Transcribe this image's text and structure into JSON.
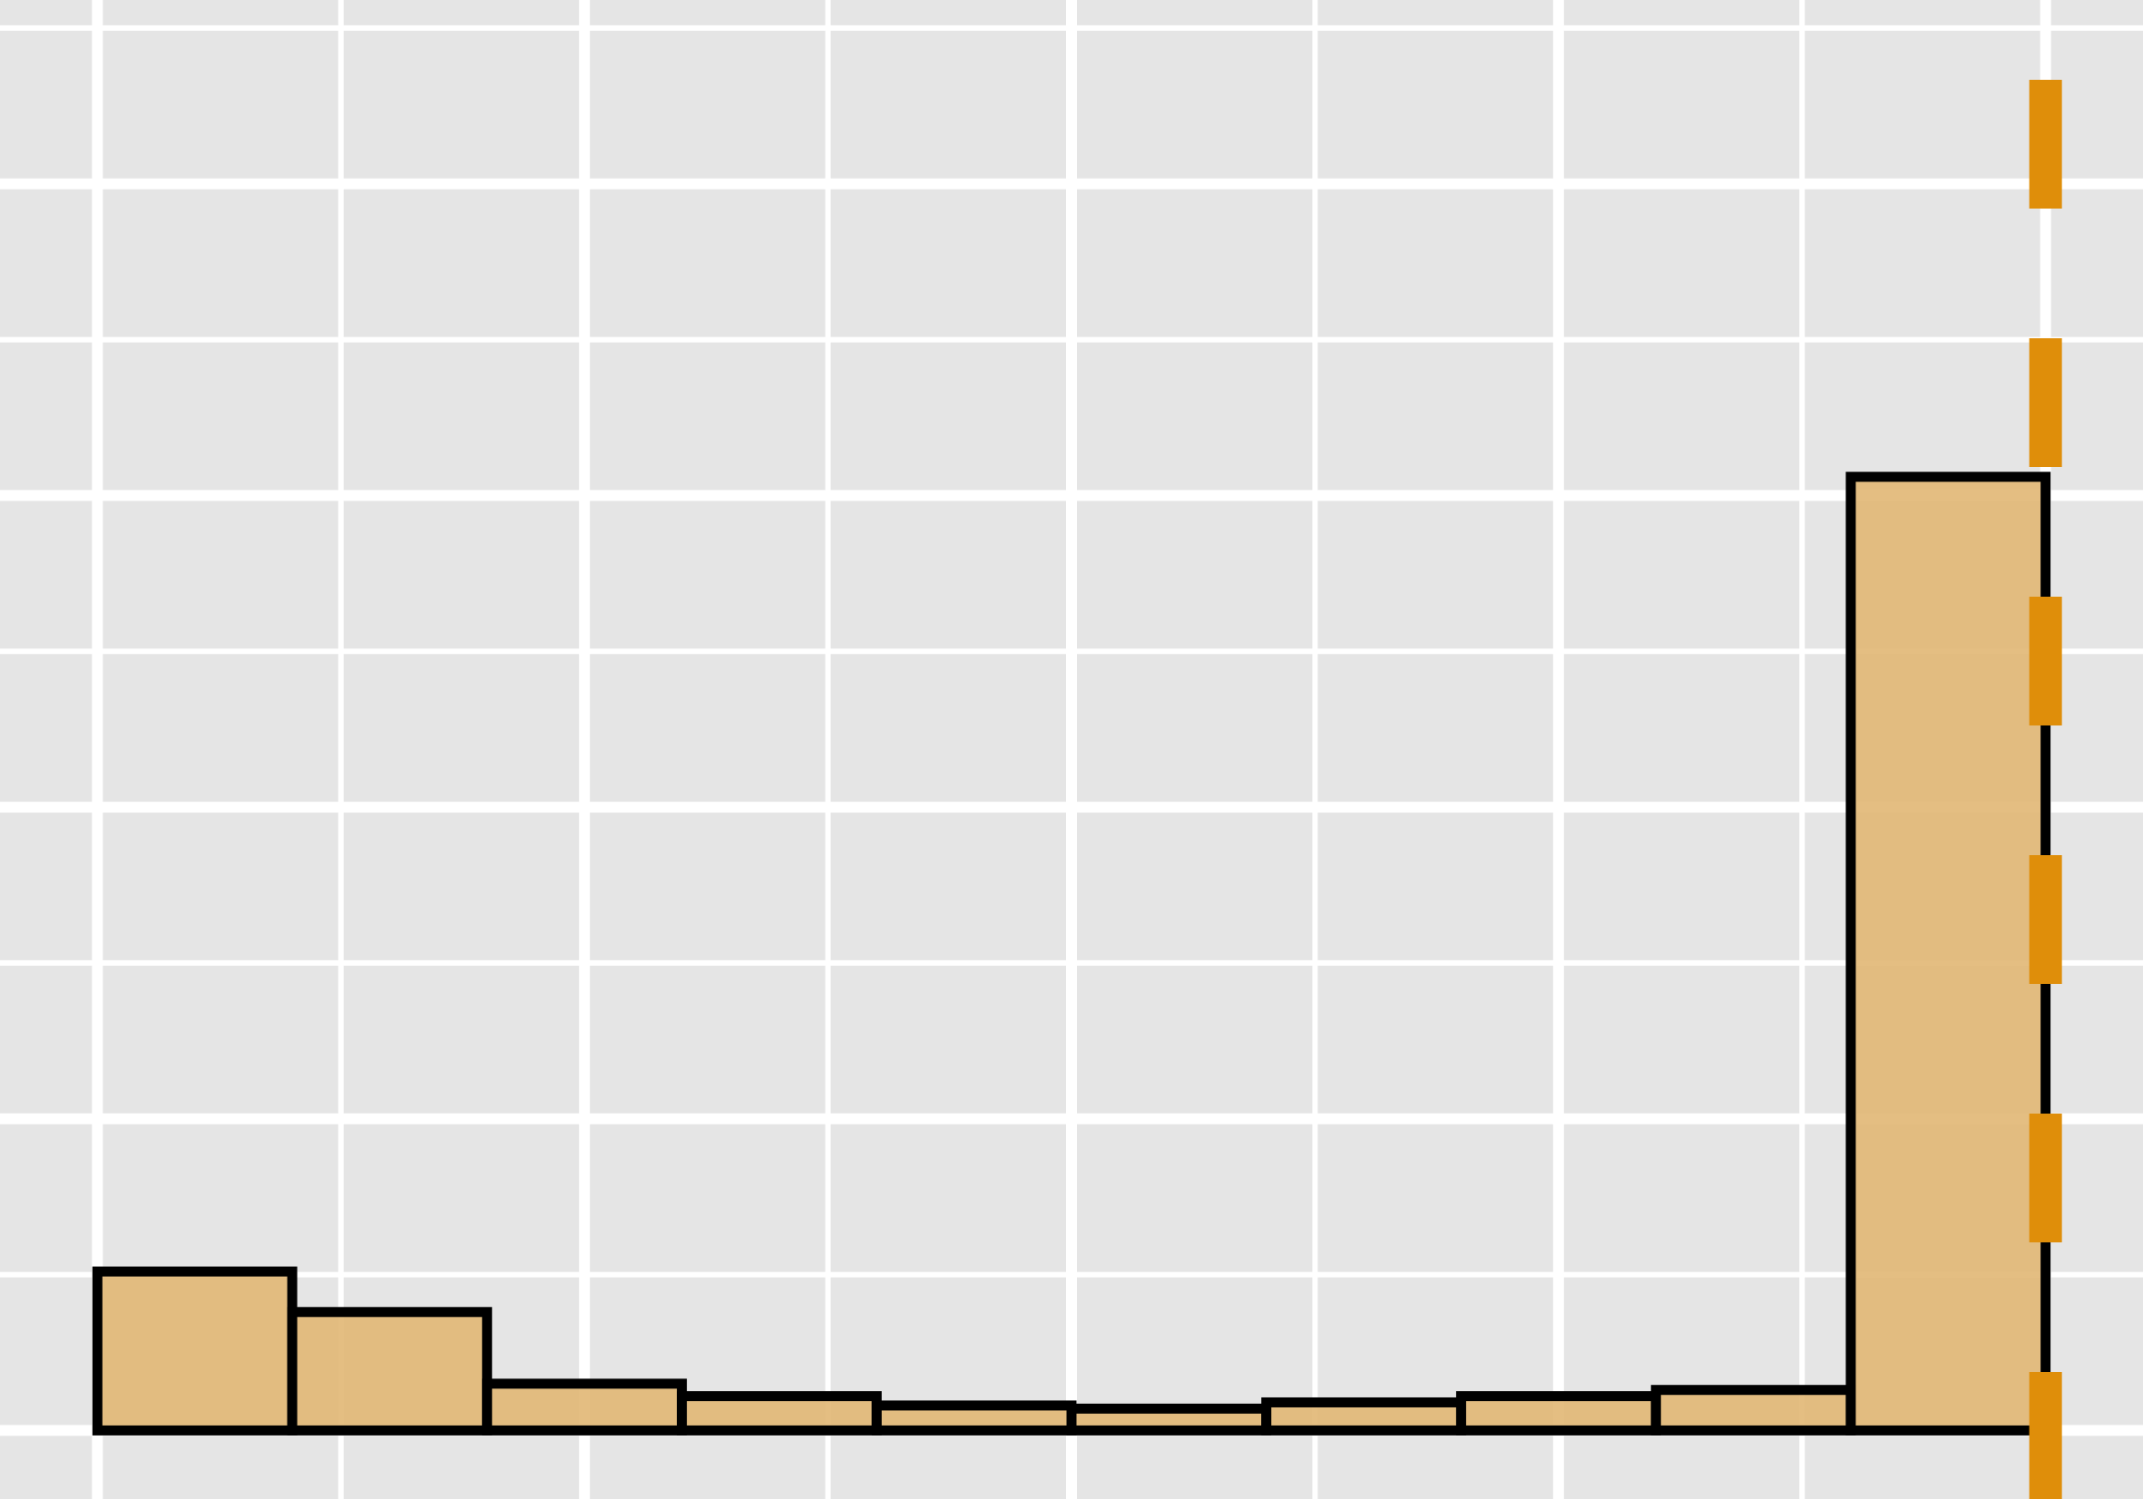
{
  "chart_data": {
    "type": "bar",
    "title": "",
    "xlabel": "",
    "ylabel": "",
    "bins": [
      {
        "x0": 0.0,
        "x1": 0.1,
        "count": 0.51
      },
      {
        "x0": 0.1,
        "x1": 0.2,
        "count": 0.38
      },
      {
        "x0": 0.2,
        "x1": 0.3,
        "count": 0.15
      },
      {
        "x0": 0.3,
        "x1": 0.4,
        "count": 0.11
      },
      {
        "x0": 0.4,
        "x1": 0.5,
        "count": 0.08
      },
      {
        "x0": 0.5,
        "x1": 0.6,
        "count": 0.07
      },
      {
        "x0": 0.6,
        "x1": 0.7,
        "count": 0.09
      },
      {
        "x0": 0.7,
        "x1": 0.8,
        "count": 0.11
      },
      {
        "x0": 0.8,
        "x1": 0.9,
        "count": 0.13
      },
      {
        "x0": 0.9,
        "x1": 1.0,
        "count": 3.06
      }
    ],
    "xlim": [
      -0.05,
      1.05
    ],
    "ylim": [
      -0.22,
      4.59
    ],
    "x_major_ticks": [
      0.0,
      0.25,
      0.5,
      0.75,
      1.0
    ],
    "y_major_ticks": [
      0.0,
      1.0,
      2.0,
      3.0,
      4.0
    ],
    "reference_line": {
      "x": 1.0,
      "style": "dashed"
    },
    "grid": true,
    "colors": {
      "panel_background": "#e5e5e5",
      "grid": "#ffffff",
      "bar_fill": "#e2b977",
      "bar_outline": "#000000",
      "reference_line": "#df8e0a"
    }
  }
}
